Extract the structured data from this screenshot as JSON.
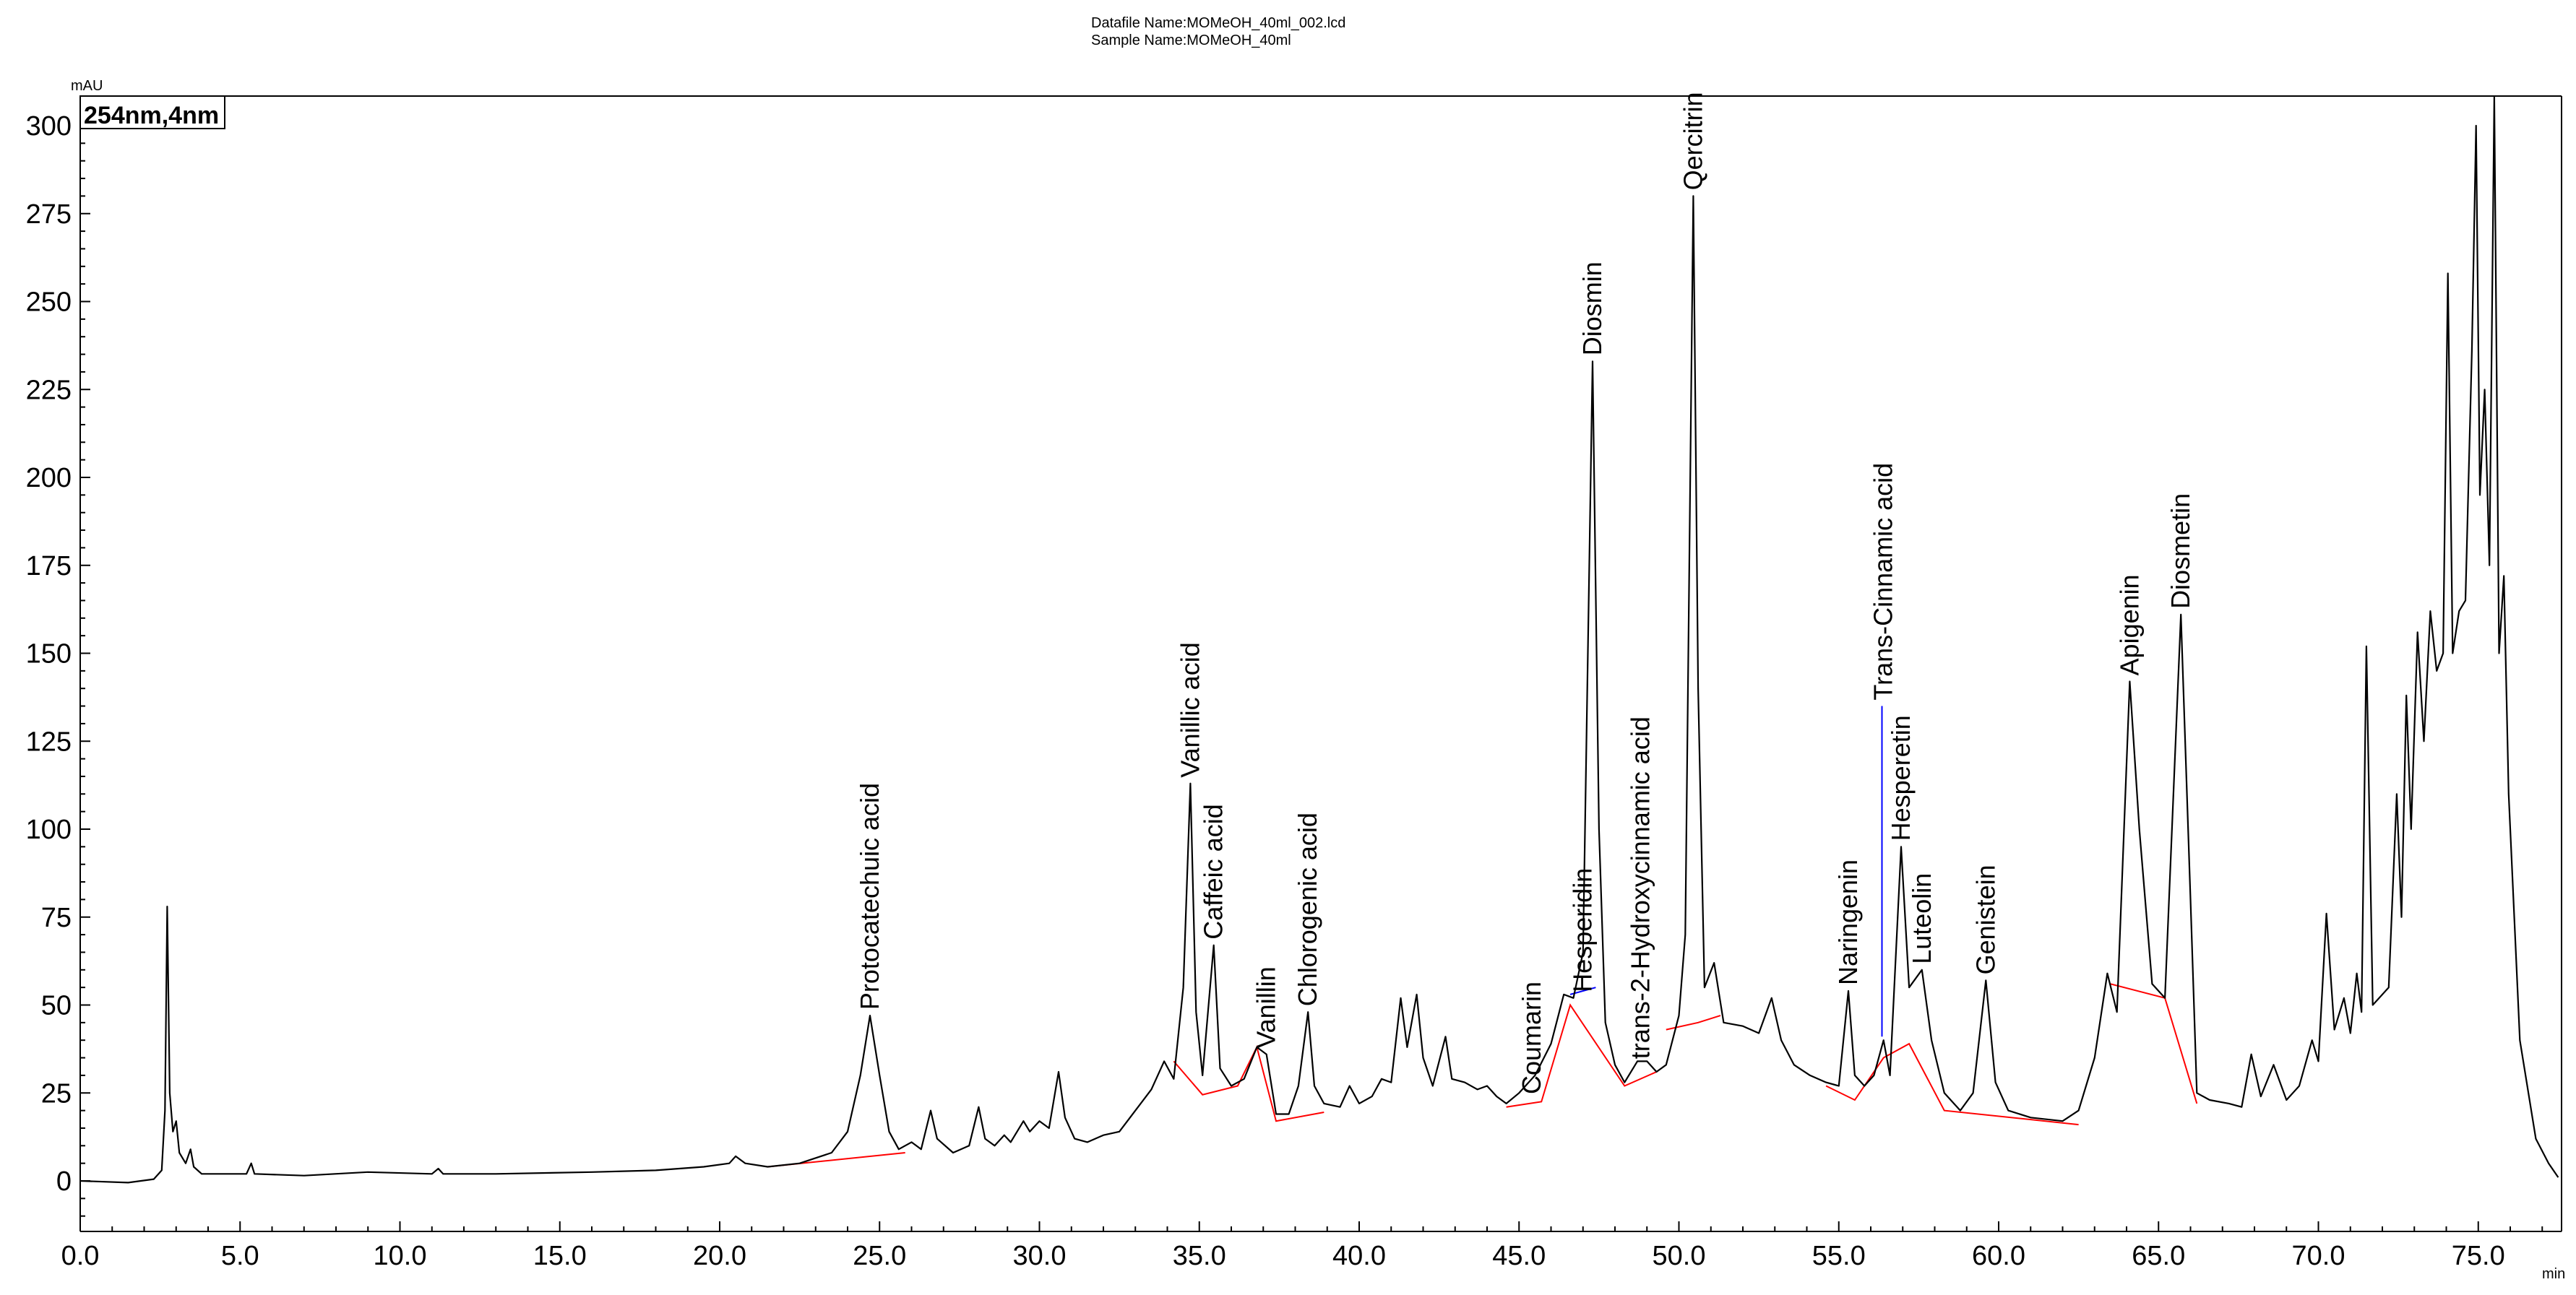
{
  "header": {
    "datafile": "Datafile Name:MOMeOH_40ml_002.lcd",
    "sample": "Sample Name:MOMeOH_40ml"
  },
  "chart_data": {
    "type": "line",
    "title": "",
    "channel_label": "254nm,4nm",
    "xlabel": "min",
    "ylabel": "mAU",
    "xlim": [
      0,
      77.5
    ],
    "ylim": [
      -15,
      307
    ],
    "x_ticks": [
      "0.0",
      "5.0",
      "10.0",
      "15.0",
      "20.0",
      "25.0",
      "30.0",
      "35.0",
      "40.0",
      "45.0",
      "50.0",
      "55.0",
      "60.0",
      "65.0",
      "70.0",
      "75.0"
    ],
    "y_ticks": [
      "0",
      "25",
      "50",
      "75",
      "100",
      "125",
      "150",
      "175",
      "200",
      "225",
      "250",
      "275",
      "300"
    ],
    "grid": false,
    "series": [
      {
        "color": "#000000",
        "points": [
          [
            0,
            0
          ],
          [
            1.5,
            -0.5
          ],
          [
            2.3,
            0.5
          ],
          [
            2.55,
            3
          ],
          [
            2.65,
            20
          ],
          [
            2.72,
            78
          ],
          [
            2.8,
            25
          ],
          [
            2.9,
            14
          ],
          [
            3.0,
            17
          ],
          [
            3.1,
            8
          ],
          [
            3.3,
            5
          ],
          [
            3.45,
            9
          ],
          [
            3.55,
            4
          ],
          [
            3.8,
            2
          ],
          [
            5.2,
            2
          ],
          [
            5.35,
            5
          ],
          [
            5.45,
            2
          ],
          [
            7,
            1.5
          ],
          [
            9,
            2.5
          ],
          [
            11,
            2
          ],
          [
            11.2,
            3.5
          ],
          [
            11.35,
            2
          ],
          [
            13,
            2
          ],
          [
            16,
            2.5
          ],
          [
            18,
            3
          ],
          [
            19.5,
            4
          ],
          [
            20.3,
            5
          ],
          [
            20.5,
            7
          ],
          [
            20.8,
            5
          ],
          [
            21.5,
            4
          ],
          [
            22.5,
            5
          ],
          [
            23.5,
            8
          ],
          [
            24,
            14
          ],
          [
            24.4,
            30
          ],
          [
            24.7,
            47
          ],
          [
            25,
            30
          ],
          [
            25.3,
            14
          ],
          [
            25.6,
            9
          ],
          [
            26,
            11
          ],
          [
            26.3,
            9
          ],
          [
            26.6,
            20
          ],
          [
            26.8,
            12
          ],
          [
            27.3,
            8
          ],
          [
            27.8,
            10
          ],
          [
            28.1,
            21
          ],
          [
            28.3,
            12
          ],
          [
            28.6,
            10
          ],
          [
            28.9,
            13
          ],
          [
            29.1,
            11
          ],
          [
            29.5,
            17
          ],
          [
            29.7,
            14
          ],
          [
            30,
            17
          ],
          [
            30.3,
            15
          ],
          [
            30.6,
            31
          ],
          [
            30.8,
            18
          ],
          [
            31.1,
            12
          ],
          [
            31.5,
            11
          ],
          [
            32,
            13
          ],
          [
            32.5,
            14
          ],
          [
            33,
            20
          ],
          [
            33.5,
            26
          ],
          [
            33.9,
            34
          ],
          [
            34.2,
            29
          ],
          [
            34.5,
            55
          ],
          [
            34.72,
            113
          ],
          [
            34.9,
            48
          ],
          [
            35.1,
            30
          ],
          [
            35.45,
            67
          ],
          [
            35.65,
            32
          ],
          [
            36,
            27
          ],
          [
            36.4,
            29
          ],
          [
            36.8,
            38
          ],
          [
            37.1,
            36
          ],
          [
            37.4,
            19
          ],
          [
            37.8,
            19
          ],
          [
            38.1,
            27
          ],
          [
            38.4,
            48
          ],
          [
            38.6,
            27
          ],
          [
            38.9,
            22
          ],
          [
            39.4,
            21
          ],
          [
            39.7,
            27
          ],
          [
            40,
            22
          ],
          [
            40.4,
            24
          ],
          [
            40.7,
            29
          ],
          [
            41,
            28
          ],
          [
            41.3,
            52
          ],
          [
            41.5,
            38
          ],
          [
            41.8,
            53
          ],
          [
            42,
            35
          ],
          [
            42.3,
            27
          ],
          [
            42.7,
            41
          ],
          [
            42.9,
            29
          ],
          [
            43.3,
            28
          ],
          [
            43.7,
            26
          ],
          [
            44,
            27
          ],
          [
            44.3,
            24
          ],
          [
            44.6,
            22
          ],
          [
            45,
            25
          ],
          [
            45.5,
            30
          ],
          [
            46,
            39
          ],
          [
            46.4,
            53
          ],
          [
            46.7,
            52
          ],
          [
            47,
            65
          ],
          [
            47.3,
            233
          ],
          [
            47.5,
            100
          ],
          [
            47.7,
            45
          ],
          [
            48,
            33
          ],
          [
            48.3,
            28
          ],
          [
            48.7,
            34
          ],
          [
            49,
            34
          ],
          [
            49.3,
            31
          ],
          [
            49.6,
            33
          ],
          [
            50,
            47
          ],
          [
            50.2,
            70
          ],
          [
            50.45,
            280
          ],
          [
            50.6,
            140
          ],
          [
            50.8,
            55
          ],
          [
            51.1,
            62
          ],
          [
            51.4,
            45
          ],
          [
            52,
            44
          ],
          [
            52.5,
            42
          ],
          [
            52.9,
            52
          ],
          [
            53.2,
            40
          ],
          [
            53.6,
            33
          ],
          [
            54.1,
            30
          ],
          [
            54.6,
            28
          ],
          [
            55,
            27
          ],
          [
            55.3,
            54
          ],
          [
            55.5,
            30
          ],
          [
            55.8,
            27
          ],
          [
            56.1,
            30
          ],
          [
            56.4,
            40
          ],
          [
            56.6,
            30
          ],
          [
            56.95,
            95
          ],
          [
            57.2,
            55
          ],
          [
            57.6,
            60
          ],
          [
            57.9,
            40
          ],
          [
            58.3,
            25
          ],
          [
            58.8,
            20
          ],
          [
            59.2,
            25
          ],
          [
            59.6,
            57
          ],
          [
            59.9,
            28
          ],
          [
            60.3,
            20
          ],
          [
            61,
            18
          ],
          [
            62,
            17
          ],
          [
            62.5,
            20
          ],
          [
            63,
            35
          ],
          [
            63.4,
            59
          ],
          [
            63.7,
            48
          ],
          [
            64.1,
            142
          ],
          [
            64.4,
            100
          ],
          [
            64.8,
            56
          ],
          [
            65.2,
            52
          ],
          [
            65.7,
            161
          ],
          [
            66,
            80
          ],
          [
            66.2,
            25
          ],
          [
            66.6,
            23
          ],
          [
            67.2,
            22
          ],
          [
            67.6,
            21
          ],
          [
            67.9,
            36
          ],
          [
            68.2,
            24
          ],
          [
            68.6,
            33
          ],
          [
            69,
            23
          ],
          [
            69.4,
            27
          ],
          [
            69.8,
            40
          ],
          [
            70,
            34
          ],
          [
            70.25,
            76
          ],
          [
            70.5,
            43
          ],
          [
            70.8,
            52
          ],
          [
            71,
            42
          ],
          [
            71.2,
            59
          ],
          [
            71.35,
            48
          ],
          [
            71.5,
            152
          ],
          [
            71.7,
            50
          ],
          [
            71.9,
            52
          ],
          [
            72.2,
            55
          ],
          [
            72.45,
            110
          ],
          [
            72.6,
            75
          ],
          [
            72.75,
            138
          ],
          [
            72.9,
            100
          ],
          [
            73.1,
            156
          ],
          [
            73.3,
            125
          ],
          [
            73.5,
            162
          ],
          [
            73.7,
            145
          ],
          [
            73.9,
            150
          ],
          [
            74.05,
            258
          ],
          [
            74.2,
            150
          ],
          [
            74.4,
            162
          ],
          [
            74.6,
            165
          ],
          [
            74.8,
            236
          ],
          [
            74.93,
            300
          ],
          [
            75.05,
            195
          ],
          [
            75.2,
            225
          ],
          [
            75.35,
            175
          ],
          [
            75.5,
            310
          ],
          [
            75.65,
            150
          ],
          [
            75.8,
            172
          ],
          [
            75.95,
            110
          ],
          [
            76.3,
            40
          ],
          [
            76.8,
            12
          ],
          [
            77.2,
            5
          ],
          [
            77.5,
            1
          ]
        ]
      }
    ],
    "baselines": [
      {
        "color": "#ff0000",
        "points": [
          [
            21.5,
            4
          ],
          [
            25.8,
            8
          ]
        ]
      },
      {
        "color": "#ff0000",
        "points": [
          [
            34.2,
            34
          ],
          [
            35.1,
            24.5
          ],
          [
            36.2,
            27
          ],
          [
            36.8,
            38
          ],
          [
            37.4,
            17
          ],
          [
            38.9,
            19.5
          ]
        ]
      },
      {
        "color": "#ff0000",
        "points": [
          [
            44.6,
            21
          ],
          [
            45.7,
            22.5
          ],
          [
            46.6,
            50
          ],
          [
            48.3,
            27
          ],
          [
            49.3,
            31
          ]
        ]
      },
      {
        "color": "#ff0000",
        "points": [
          [
            49.6,
            43
          ],
          [
            50.6,
            45
          ],
          [
            51.3,
            47
          ]
        ]
      },
      {
        "color": "#ff0000",
        "points": [
          [
            54.6,
            27
          ],
          [
            55.5,
            23
          ],
          [
            56.4,
            35
          ],
          [
            57.2,
            39
          ],
          [
            58.3,
            20
          ],
          [
            62.5,
            16
          ]
        ]
      },
      {
        "color": "#ff0000",
        "points": [
          [
            63.5,
            56
          ],
          [
            65.2,
            52
          ],
          [
            66.2,
            22
          ]
        ]
      },
      {
        "color": "#0000ff",
        "points": [
          [
            46.6,
            53
          ],
          [
            47.4,
            55
          ]
        ]
      },
      {
        "color": "#0000ff",
        "points": [
          [
            56.35,
            41
          ],
          [
            56.35,
            135
          ]
        ]
      }
    ],
    "peaks": [
      {
        "name": "Protocatechuic acid",
        "x": 24.7,
        "y": 47
      },
      {
        "name": "Vanillic acid",
        "x": 34.72,
        "y": 113
      },
      {
        "name": "Caffeic acid",
        "x": 35.45,
        "y": 67
      },
      {
        "name": "Vanillin",
        "x": 37.1,
        "y": 36
      },
      {
        "name": "Chlorogenic acid",
        "x": 38.4,
        "y": 48
      },
      {
        "name": "Coumarin",
        "x": 45.4,
        "y": 23
      },
      {
        "name": "Hesperidin",
        "x": 47.0,
        "y": 52
      },
      {
        "name": "Diosmin",
        "x": 47.3,
        "y": 233
      },
      {
        "name": "trans-2-Hydroxycinnamic acid",
        "x": 48.8,
        "y": 33
      },
      {
        "name": "Qercitrin",
        "x": 50.45,
        "y": 280
      },
      {
        "name": "Naringenin",
        "x": 55.3,
        "y": 54
      },
      {
        "name": "Trans-Cinnamic acid",
        "x": 56.4,
        "y": 135
      },
      {
        "name": "Hesperetin",
        "x": 56.95,
        "y": 95
      },
      {
        "name": "Luteolin",
        "x": 57.6,
        "y": 60
      },
      {
        "name": "Genistein",
        "x": 59.6,
        "y": 57
      },
      {
        "name": "Apigenin",
        "x": 64.1,
        "y": 142
      },
      {
        "name": "Diosmetin",
        "x": 65.7,
        "y": 161
      }
    ]
  }
}
